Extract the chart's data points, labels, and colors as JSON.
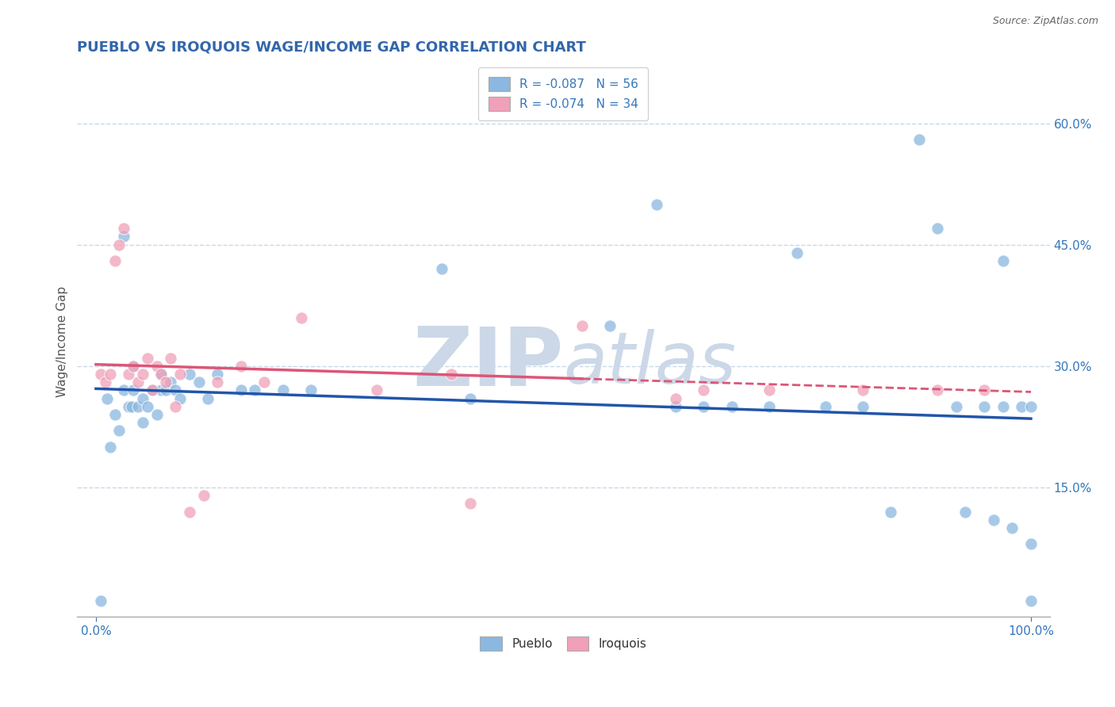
{
  "title": "PUEBLO VS IROQUOIS WAGE/INCOME GAP CORRELATION CHART",
  "source": "Source: ZipAtlas.com",
  "ylabel": "Wage/Income Gap",
  "xlim": [
    -0.02,
    1.02
  ],
  "ylim": [
    -0.01,
    0.67
  ],
  "ytick_positions": [
    0.15,
    0.3,
    0.45,
    0.6
  ],
  "ytick_labels": [
    "15.0%",
    "30.0%",
    "45.0%",
    "60.0%"
  ],
  "legend_entries": [
    {
      "label": "R = -0.087   N = 56",
      "color": "#a8c8e8"
    },
    {
      "label": "R = -0.074   N = 34",
      "color": "#f0b0c8"
    }
  ],
  "pueblo_color": "#8ab8e0",
  "iroquois_color": "#f0a0b8",
  "pueblo_trendline_color": "#2255aa",
  "iroquois_trendline_color": "#dd5577",
  "watermark_zip": "ZIP",
  "watermark_atlas": "atlas",
  "watermark_color": "#ccd8e8",
  "background_color": "#ffffff",
  "grid_color": "#c8d8e8",
  "pueblo_x": [
    0.005,
    0.012,
    0.015,
    0.02,
    0.025,
    0.03,
    0.03,
    0.035,
    0.038,
    0.04,
    0.04,
    0.045,
    0.05,
    0.05,
    0.055,
    0.06,
    0.065,
    0.07,
    0.07,
    0.075,
    0.08,
    0.085,
    0.09,
    0.1,
    0.11,
    0.12,
    0.13,
    0.155,
    0.17,
    0.2,
    0.23,
    0.37,
    0.4,
    0.55,
    0.6,
    0.62,
    0.65,
    0.68,
    0.72,
    0.75,
    0.78,
    0.82,
    0.85,
    0.88,
    0.9,
    0.92,
    0.93,
    0.95,
    0.96,
    0.97,
    0.97,
    0.98,
    0.99,
    1.0,
    1.0,
    1.0
  ],
  "pueblo_y": [
    0.01,
    0.26,
    0.2,
    0.24,
    0.22,
    0.27,
    0.46,
    0.25,
    0.25,
    0.27,
    0.3,
    0.25,
    0.23,
    0.26,
    0.25,
    0.27,
    0.24,
    0.27,
    0.29,
    0.27,
    0.28,
    0.27,
    0.26,
    0.29,
    0.28,
    0.26,
    0.29,
    0.27,
    0.27,
    0.27,
    0.27,
    0.42,
    0.26,
    0.35,
    0.5,
    0.25,
    0.25,
    0.25,
    0.25,
    0.44,
    0.25,
    0.25,
    0.12,
    0.58,
    0.47,
    0.25,
    0.12,
    0.25,
    0.11,
    0.43,
    0.25,
    0.1,
    0.25,
    0.08,
    0.25,
    0.01
  ],
  "iroquois_x": [
    0.005,
    0.01,
    0.015,
    0.02,
    0.025,
    0.03,
    0.035,
    0.04,
    0.045,
    0.05,
    0.055,
    0.06,
    0.065,
    0.07,
    0.075,
    0.08,
    0.085,
    0.09,
    0.1,
    0.115,
    0.13,
    0.155,
    0.18,
    0.22,
    0.3,
    0.38,
    0.4,
    0.52,
    0.62,
    0.65,
    0.72,
    0.82,
    0.9,
    0.95
  ],
  "iroquois_y": [
    0.29,
    0.28,
    0.29,
    0.43,
    0.45,
    0.47,
    0.29,
    0.3,
    0.28,
    0.29,
    0.31,
    0.27,
    0.3,
    0.29,
    0.28,
    0.31,
    0.25,
    0.29,
    0.12,
    0.14,
    0.28,
    0.3,
    0.28,
    0.36,
    0.27,
    0.29,
    0.13,
    0.35,
    0.26,
    0.27,
    0.27,
    0.27,
    0.27,
    0.27
  ],
  "pueblo_trend_x0": 0.0,
  "pueblo_trend_y0": 0.272,
  "pueblo_trend_x1": 1.0,
  "pueblo_trend_y1": 0.235,
  "iroquois_trend_x0": 0.0,
  "iroquois_trend_y0": 0.302,
  "iroquois_trend_x1": 1.0,
  "iroquois_trend_y1": 0.268
}
